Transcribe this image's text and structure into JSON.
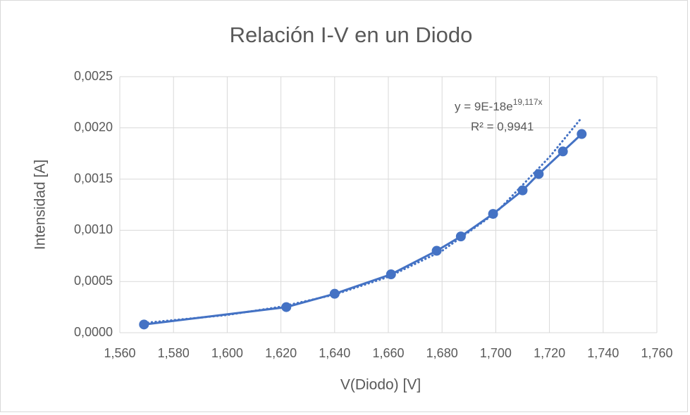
{
  "chart_data": {
    "type": "scatter",
    "title": "Relación I-V en un Diodo",
    "x_label": "V(Diodo) [V]",
    "y_label": "Intensidad [A]",
    "xlim": [
      1.56,
      1.76
    ],
    "ylim": [
      0,
      0.0025
    ],
    "xticks": [
      {
        "value": 1.56,
        "label": "1,560"
      },
      {
        "value": 1.58,
        "label": "1,580"
      },
      {
        "value": 1.6,
        "label": "1,600"
      },
      {
        "value": 1.62,
        "label": "1,620"
      },
      {
        "value": 1.64,
        "label": "1,640"
      },
      {
        "value": 1.66,
        "label": "1,660"
      },
      {
        "value": 1.68,
        "label": "1,680"
      },
      {
        "value": 1.7,
        "label": "1,700"
      },
      {
        "value": 1.72,
        "label": "1,720"
      },
      {
        "value": 1.74,
        "label": "1,740"
      },
      {
        "value": 1.76,
        "label": "1,760"
      }
    ],
    "yticks": [
      {
        "value": 0,
        "label": "0,0000"
      },
      {
        "value": 0.0005,
        "label": "0,0005"
      },
      {
        "value": 0.001,
        "label": "0,0010"
      },
      {
        "value": 0.0015,
        "label": "0,0015"
      },
      {
        "value": 0.002,
        "label": "0,0020"
      },
      {
        "value": 0.0025,
        "label": "0,0025"
      }
    ],
    "grid": true,
    "series": [
      {
        "color": "#4472c4",
        "x": [
          1.569,
          1.622,
          1.64,
          1.661,
          1.678,
          1.687,
          1.699,
          1.71,
          1.716,
          1.725,
          1.732
        ],
        "values": [
          8e-05,
          0.00025,
          0.00038,
          0.00057,
          0.0008,
          0.00094,
          0.00116,
          0.00139,
          0.00155,
          0.00177,
          0.00194
        ]
      }
    ],
    "trendline": {
      "color": "#4472c4",
      "x": [
        1.569,
        1.6,
        1.62,
        1.64,
        1.66,
        1.68,
        1.7,
        1.72,
        1.732
      ],
      "values": [
        9.5e-05,
        0.000173,
        0.000254,
        0.000372,
        0.000545,
        0.000799,
        0.00117,
        0.001715,
        0.0021
      ]
    },
    "annotation": {
      "equation": "y = 9E-18e",
      "exponent": "19,117x",
      "r2": "R² = 0,9941"
    }
  }
}
